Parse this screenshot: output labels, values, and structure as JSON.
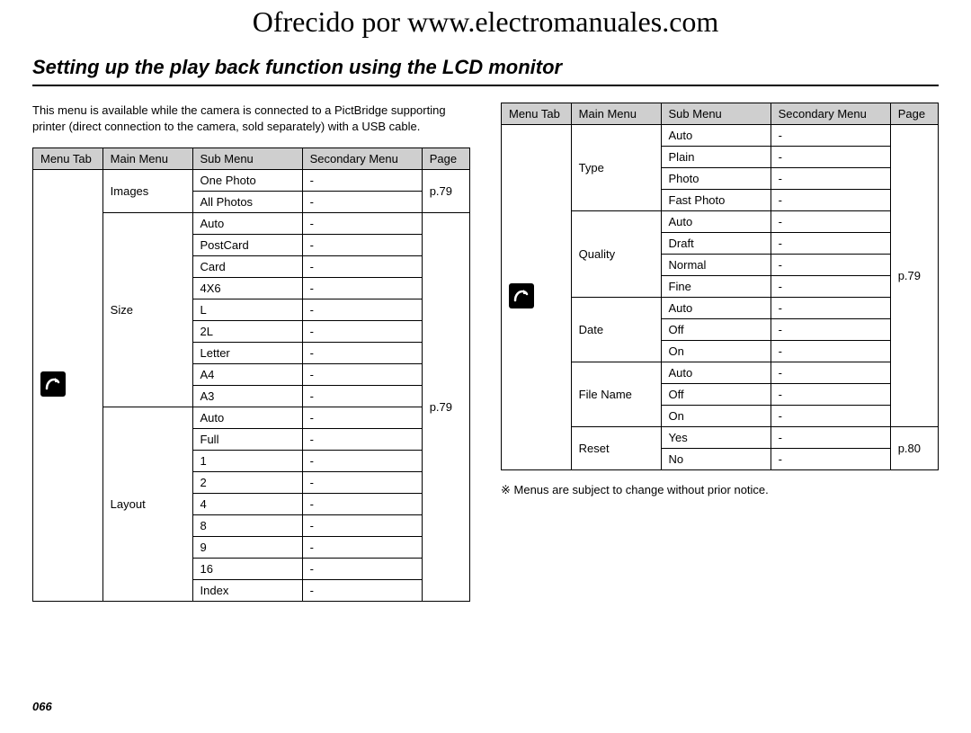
{
  "watermark": "Ofrecido por www.electromanuales.com",
  "title": "Setting up the play back function using the LCD monitor",
  "intro": "This menu is available while the camera is connected to a PictBridge supporting printer (direct connection to the camera, sold separately) with a USB cable.",
  "columns": [
    "Menu Tab",
    "Main Menu",
    "Sub Menu",
    "Secondary Menu",
    "Page"
  ],
  "dash": "-",
  "table1": {
    "page_first": "p.79",
    "page_rest": "p.79",
    "groups": [
      {
        "main": "Images",
        "subs": [
          "One Photo",
          "All Photos"
        ]
      },
      {
        "main": "Size",
        "subs": [
          "Auto",
          "PostCard",
          "Card",
          "4X6",
          "L",
          "2L",
          "Letter",
          "A4",
          "A3"
        ]
      },
      {
        "main": "Layout",
        "subs": [
          "Auto",
          "Full",
          "1",
          "2",
          "4",
          "8",
          "9",
          "16",
          "Index"
        ]
      }
    ]
  },
  "table2": {
    "groups": [
      {
        "main": "Type",
        "subs": [
          "Auto",
          "Plain",
          "Photo",
          "Fast Photo"
        ],
        "page": "p.79",
        "page_shared": true
      },
      {
        "main": "Quality",
        "subs": [
          "Auto",
          "Draft",
          "Normal",
          "Fine"
        ],
        "page": "p.79",
        "page_shared": true
      },
      {
        "main": "Date",
        "subs": [
          "Auto",
          "Off",
          "On"
        ],
        "page": "p.79",
        "page_shared": true
      },
      {
        "main": "File Name",
        "subs": [
          "Auto",
          "Off",
          "On"
        ],
        "page": "p.79",
        "page_shared": true
      },
      {
        "main": "Reset",
        "subs": [
          "Yes",
          "No"
        ],
        "page": "p.80",
        "page_shared": false
      }
    ]
  },
  "footnote": "※ Menus are subject to change without prior notice.",
  "pageNumber": "066",
  "style": {
    "header_bg": "#cfcfcf",
    "border": "#000000",
    "text": "#000000",
    "font_size_body": 13,
    "font_size_title": 22,
    "font_size_watermark": 32,
    "icon_bg": "#000000",
    "icon_stroke": "#ffffff"
  }
}
